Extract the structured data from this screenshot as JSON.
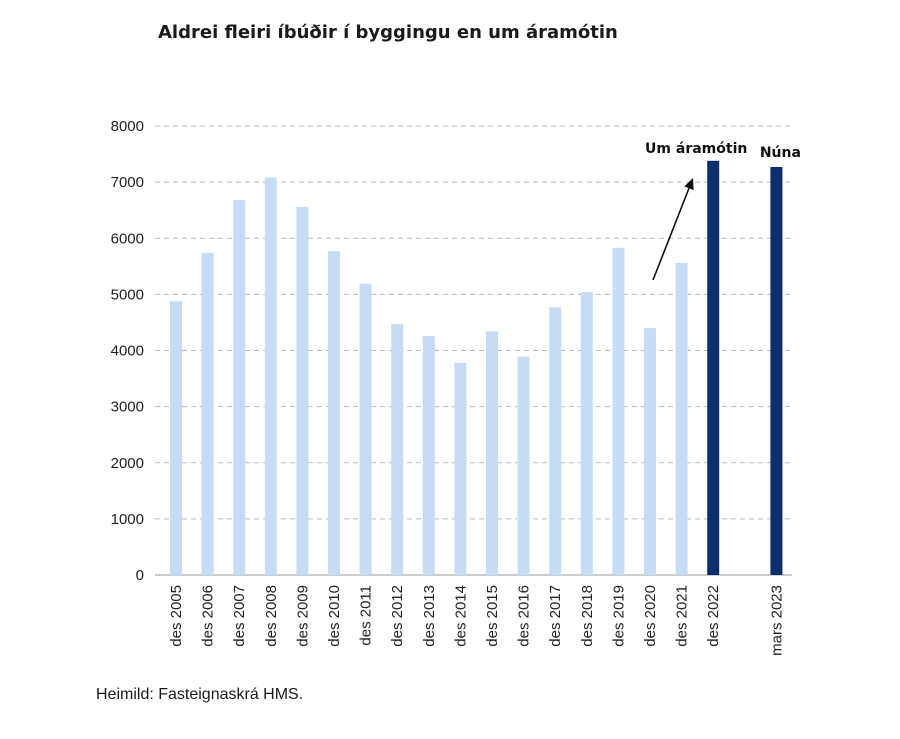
{
  "title": "Aldrei fleiri íbúðir í byggingu en um áramótin",
  "source": "Heimild: Fasteignaskrá  HMS.",
  "chart_data": {
    "type": "bar",
    "title": "Aldrei fleiri íbúðir í byggingu en um áramótin",
    "xlabel": "",
    "ylabel": "",
    "ylim": [
      0,
      8000
    ],
    "yticks": [
      0,
      1000,
      2000,
      3000,
      4000,
      5000,
      6000,
      7000,
      8000
    ],
    "grid": true,
    "categories": [
      "des 2005",
      "des 2006",
      "des 2007",
      "des 2008",
      "des 2009",
      "des 2010",
      "des 2011",
      "des 2012",
      "des 2013",
      "des 2014",
      "des 2015",
      "des 2016",
      "des 2017",
      "des 2018",
      "des 2019",
      "des 2020",
      "des 2021",
      "des 2022",
      "",
      "mars 2023"
    ],
    "values": [
      4880,
      5740,
      6680,
      7080,
      6560,
      5770,
      5190,
      4470,
      4260,
      3780,
      4340,
      3890,
      4770,
      5040,
      5830,
      4400,
      5560,
      7380,
      null,
      7270
    ],
    "highlight": [
      "des 2022",
      "mars 2023"
    ],
    "colors": {
      "normal": "#c6dcf5",
      "highlight": "#0d2f6b",
      "grid": "#bbbbbb"
    },
    "annotations": [
      {
        "text": "Um áramótin",
        "category": "des 2022"
      },
      {
        "text": "Núna",
        "category": "mars 2023"
      }
    ]
  }
}
